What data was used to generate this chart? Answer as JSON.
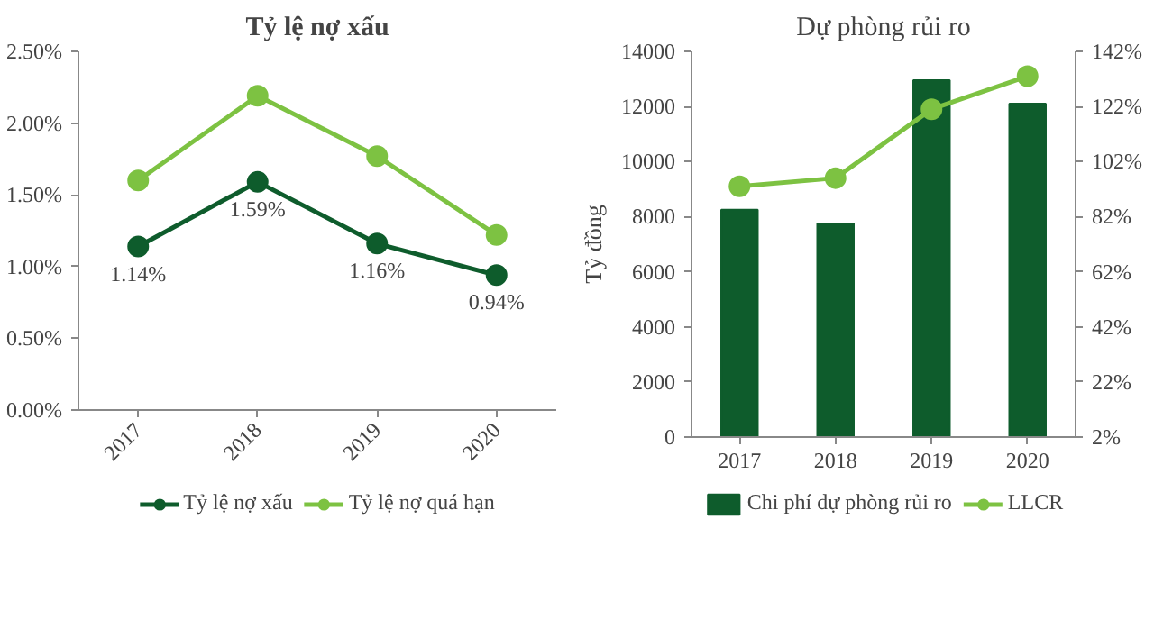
{
  "chart_data": [
    {
      "type": "line",
      "title": "Tỷ lệ nợ xấu",
      "categories": [
        "2017",
        "2018",
        "2019",
        "2020"
      ],
      "ylim": [
        0,
        2.5
      ],
      "yticks": [
        {
          "value": 0,
          "label": "0.00%"
        },
        {
          "value": 0.5,
          "label": "0.50%"
        },
        {
          "value": 1.0,
          "label": "1.00%"
        },
        {
          "value": 1.5,
          "label": "1.50%"
        },
        {
          "value": 2.0,
          "label": "2.00%"
        },
        {
          "value": 2.5,
          "label": "2.50%"
        }
      ],
      "grid": false,
      "legend": "bottom",
      "marker": "circle",
      "line_style": "solid",
      "series": [
        {
          "name": "Tỷ lệ nợ xấu",
          "color": "#0e5c2c",
          "values": [
            1.14,
            1.59,
            1.16,
            0.94
          ],
          "value_labels": [
            "1.14%",
            "1.59%",
            "1.16%",
            "0.94%"
          ]
        },
        {
          "name": "Tỷ lệ nợ quá hạn",
          "color": "#7dc242",
          "values": [
            1.6,
            2.19,
            1.77,
            1.22
          ]
        }
      ]
    },
    {
      "type": "bar",
      "title": "Dự phòng rủi ro",
      "ylabel": "Tỷ đồng",
      "categories": [
        "2017",
        "2018",
        "2019",
        "2020"
      ],
      "ylim": [
        0,
        14000
      ],
      "yticks": [
        0,
        2000,
        4000,
        6000,
        8000,
        10000,
        12000,
        14000
      ],
      "y2lim": [
        2,
        142
      ],
      "y2ticks": [
        {
          "value": 2,
          "label": "2%"
        },
        {
          "value": 22,
          "label": "22%"
        },
        {
          "value": 42,
          "label": "42%"
        },
        {
          "value": 62,
          "label": "62%"
        },
        {
          "value": 82,
          "label": "82%"
        },
        {
          "value": 102,
          "label": "102%"
        },
        {
          "value": 122,
          "label": "122%"
        },
        {
          "value": 142,
          "label": "142%"
        }
      ],
      "grid": false,
      "legend": "bottom",
      "series": [
        {
          "name": "Chi phí dự phòng rủi ro",
          "type": "bar",
          "color": "#0e5c2c",
          "values": [
            8250,
            7750,
            12950,
            12100
          ]
        },
        {
          "name": "LLCR",
          "type": "line",
          "axis": "y2",
          "marker": "circle",
          "color": "#7dc242",
          "values": [
            93,
            96,
            121,
            133
          ]
        }
      ]
    }
  ]
}
